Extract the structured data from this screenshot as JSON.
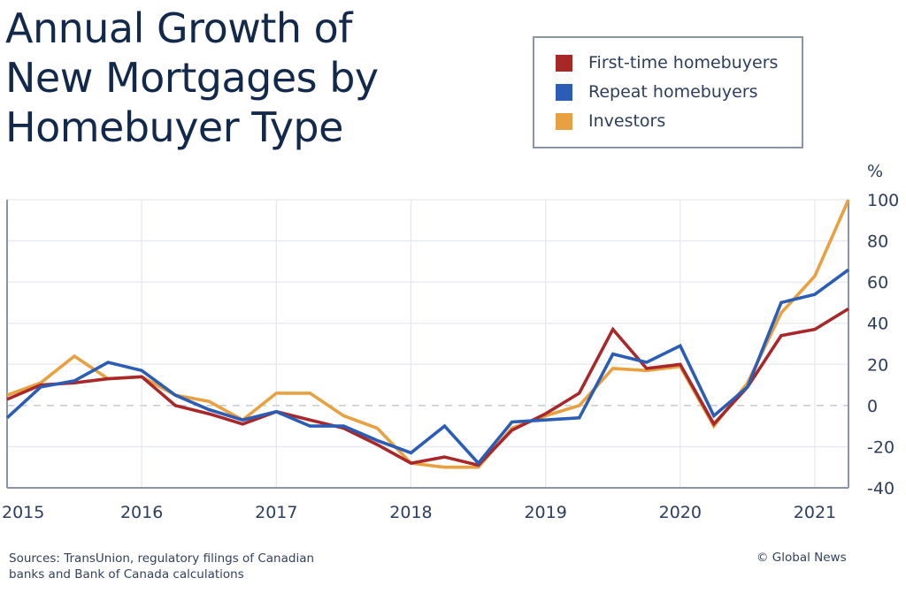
{
  "chart_data": {
    "type": "line",
    "title": "Annual Growth of New Mortgages by Homebuyer Type",
    "title_lines": [
      "Annual Growth of",
      "New Mortgages by",
      "Homebuyer Type"
    ],
    "ylabel": "%",
    "xlabel": "",
    "ylim": [
      -40,
      100
    ],
    "yticks": [
      100,
      80,
      60,
      40,
      20,
      0,
      -20,
      -40
    ],
    "ytick_labels": [
      "100",
      "80",
      "60",
      "40",
      "20",
      "0",
      "-20",
      "-40"
    ],
    "xlim": [
      2015.0,
      2021.25
    ],
    "xticks": [
      2015,
      2016,
      2017,
      2018,
      2019,
      2020,
      2021
    ],
    "xtick_labels": [
      "2015",
      "2016",
      "2017",
      "2018",
      "2019",
      "2020",
      "2021"
    ],
    "grid": true,
    "zero_line": "dashed",
    "legend_position": "top-right",
    "x": [
      2015.0,
      2015.25,
      2015.5,
      2015.75,
      2016.0,
      2016.25,
      2016.5,
      2016.75,
      2017.0,
      2017.25,
      2017.5,
      2017.75,
      2018.0,
      2018.25,
      2018.5,
      2018.75,
      2019.0,
      2019.25,
      2019.5,
      2019.75,
      2020.0,
      2020.25,
      2020.5,
      2020.75,
      2021.0,
      2021.25
    ],
    "series": [
      {
        "name": "First-time homebuyers",
        "color": "#a8282a",
        "values": [
          3,
          10,
          11,
          13,
          14,
          0,
          -4,
          -9,
          -3,
          -7,
          -11,
          -19,
          -28,
          -25,
          -29,
          -12,
          -4,
          6,
          37,
          18,
          20,
          -9,
          9,
          34,
          37,
          47
        ]
      },
      {
        "name": "Repeat homebuyers",
        "color": "#2c5db5",
        "values": [
          -6,
          9,
          12,
          21,
          17,
          5,
          -2,
          -7,
          -3,
          -10,
          -10,
          -17,
          -23,
          -10,
          -28,
          -8,
          -7,
          -6,
          25,
          21,
          29,
          -5,
          9,
          50,
          54,
          66
        ]
      },
      {
        "name": "Investors",
        "color": "#e9a040",
        "values": [
          5,
          11,
          24,
          13,
          14,
          5,
          2,
          -7,
          6,
          6,
          -5,
          -11,
          -28,
          -30,
          -30,
          -11,
          -5,
          0,
          18,
          17,
          19,
          -10,
          11,
          45,
          63,
          100
        ]
      }
    ]
  },
  "footer": {
    "source_lines": [
      "Sources: TransUnion, regulatory filings of Canadian",
      "banks and Bank of Canada calculations"
    ],
    "credit": "© Global News"
  },
  "colors": {
    "title": "#13294b",
    "axis": "#8a96a6",
    "grid": "#e6e9ef",
    "zero": "#b8c0cc"
  }
}
